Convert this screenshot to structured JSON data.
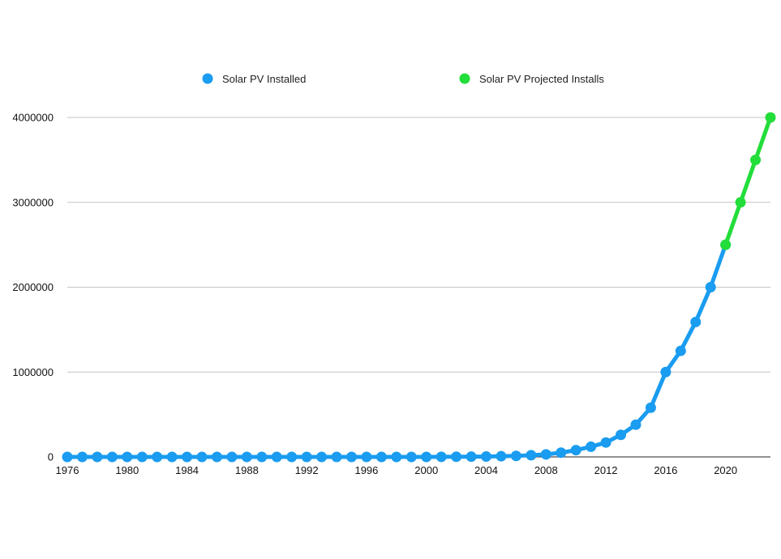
{
  "chart_data": {
    "type": "line",
    "title": "",
    "xlabel": "",
    "ylabel": "",
    "xlim": [
      1976,
      2023
    ],
    "ylim": [
      0,
      4000000
    ],
    "x_ticks": [
      "1976",
      "1980",
      "1984",
      "1988",
      "1992",
      "1996",
      "2000",
      "2004",
      "2008",
      "2012",
      "2016",
      "2020"
    ],
    "y_ticks": [
      "0",
      "1000000",
      "2000000",
      "3000000",
      "4000000"
    ],
    "grid": true,
    "legend_position": "top-center",
    "series": [
      {
        "name": "Solar PV Installed",
        "color": "#1a9cf0",
        "marker": "circle",
        "x": [
          1976,
          1977,
          1978,
          1979,
          1980,
          1981,
          1982,
          1983,
          1984,
          1985,
          1986,
          1987,
          1988,
          1989,
          1990,
          1991,
          1992,
          1993,
          1994,
          1995,
          1996,
          1997,
          1998,
          1999,
          2000,
          2001,
          2002,
          2003,
          2004,
          2005,
          2006,
          2007,
          2008,
          2009,
          2010,
          2011,
          2012,
          2013,
          2014,
          2015,
          2016,
          2017,
          2018,
          2019,
          2020
        ],
        "y": [
          0,
          0,
          0,
          0,
          0,
          0,
          0,
          0,
          0,
          0,
          0,
          0,
          0,
          0,
          0,
          0,
          0,
          0,
          0,
          0,
          0,
          0,
          0,
          0,
          0,
          1000,
          2000,
          3000,
          5000,
          8000,
          12000,
          20000,
          30000,
          50000,
          80000,
          120000,
          170000,
          260000,
          380000,
          580000,
          1000000,
          1250000,
          1590000,
          2000000,
          2500000
        ]
      },
      {
        "name": "Solar PV Projected Installs",
        "color": "#22dd3a",
        "marker": "circle",
        "x": [
          2020,
          2021,
          2022,
          2023
        ],
        "y": [
          2500000,
          3000000,
          3500000,
          4000000
        ]
      }
    ]
  }
}
